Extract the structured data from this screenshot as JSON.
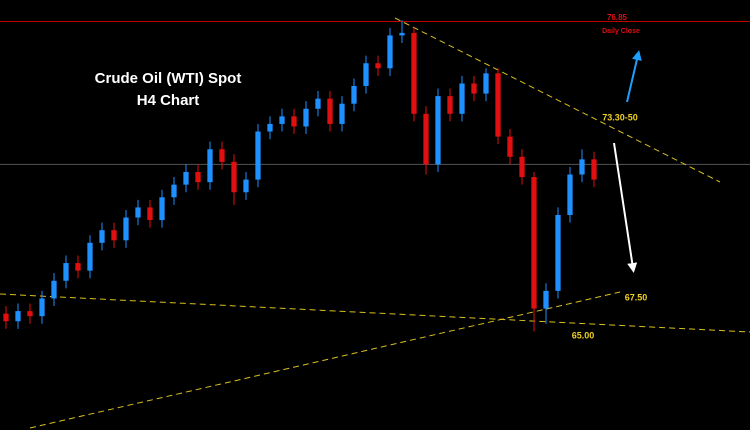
{
  "chart_data": {
    "type": "candlestick",
    "title": "Crude Oil (WTI) Spot",
    "subtitle": "H4 Chart",
    "categories": [
      null,
      null,
      null,
      null,
      null,
      null,
      null,
      null,
      null,
      null,
      null,
      null,
      null,
      null,
      null,
      null,
      null,
      null,
      null,
      null,
      null,
      null,
      null,
      null,
      null,
      null,
      null,
      null,
      null,
      null,
      null,
      null,
      null,
      null,
      null,
      null,
      null,
      null,
      null,
      null,
      null,
      null,
      null,
      null,
      null,
      null,
      null,
      null,
      null,
      null
    ],
    "open": [
      65.3,
      65.0,
      65.4,
      65.2,
      65.9,
      66.6,
      67.3,
      67.0,
      68.1,
      68.6,
      68.2,
      69.1,
      69.5,
      69.0,
      69.9,
      70.4,
      70.9,
      70.5,
      71.8,
      71.3,
      70.1,
      70.6,
      72.5,
      72.8,
      73.1,
      72.7,
      73.4,
      73.8,
      72.8,
      73.6,
      74.3,
      75.2,
      75.0,
      76.3,
      76.4,
      73.2,
      71.2,
      73.9,
      73.2,
      74.4,
      74.0,
      74.8,
      72.3,
      71.5,
      70.7,
      65.5,
      66.2,
      69.2,
      70.8,
      71.4
    ],
    "high": [
      65.6,
      65.7,
      65.7,
      66.2,
      66.9,
      67.6,
      67.6,
      68.4,
      68.9,
      68.9,
      69.4,
      69.8,
      69.8,
      70.2,
      70.7,
      71.2,
      71.2,
      72.1,
      72.1,
      71.6,
      70.9,
      72.8,
      73.1,
      73.4,
      73.4,
      73.7,
      74.1,
      74.1,
      73.9,
      74.6,
      75.5,
      75.5,
      76.6,
      76.9,
      76.6,
      73.5,
      74.2,
      74.2,
      74.7,
      74.7,
      75.0,
      75.0,
      72.6,
      71.8,
      70.9,
      66.5,
      69.5,
      71.1,
      71.8,
      71.7
    ],
    "low": [
      64.7,
      64.7,
      64.9,
      64.9,
      65.6,
      66.3,
      66.7,
      66.7,
      67.8,
      67.9,
      67.9,
      68.8,
      68.7,
      68.7,
      69.6,
      70.1,
      70.2,
      70.2,
      71.0,
      69.6,
      69.8,
      70.3,
      72.2,
      72.5,
      72.4,
      72.4,
      73.1,
      72.5,
      72.5,
      73.3,
      74.0,
      74.7,
      74.7,
      76.0,
      72.9,
      70.8,
      70.9,
      72.9,
      72.9,
      73.7,
      73.7,
      72.0,
      71.2,
      70.4,
      64.6,
      64.9,
      65.9,
      68.9,
      70.5,
      70.3
    ],
    "close": [
      65.0,
      65.4,
      65.2,
      65.9,
      66.6,
      67.3,
      67.0,
      68.1,
      68.6,
      68.2,
      69.1,
      69.5,
      69.0,
      69.9,
      70.4,
      70.9,
      70.5,
      71.8,
      71.3,
      70.1,
      70.6,
      72.5,
      72.8,
      73.1,
      72.7,
      73.4,
      73.8,
      72.8,
      73.6,
      74.3,
      75.2,
      75.0,
      76.3,
      76.4,
      73.2,
      71.2,
      73.9,
      73.2,
      74.4,
      74.0,
      74.8,
      72.3,
      71.5,
      70.7,
      65.5,
      66.2,
      69.2,
      70.8,
      71.4,
      70.6
    ],
    "up_color": "#1e90ff",
    "down_color": "#e01010",
    "ylim": [
      60.7,
      77.7
    ],
    "hlines": [
      {
        "value": 76.85,
        "color": "#c00000"
      },
      {
        "value": 71.2,
        "color": "#555555"
      }
    ],
    "annotations": [
      "Daily Close",
      "73.30-50",
      "67.50",
      "65.00"
    ]
  }
}
